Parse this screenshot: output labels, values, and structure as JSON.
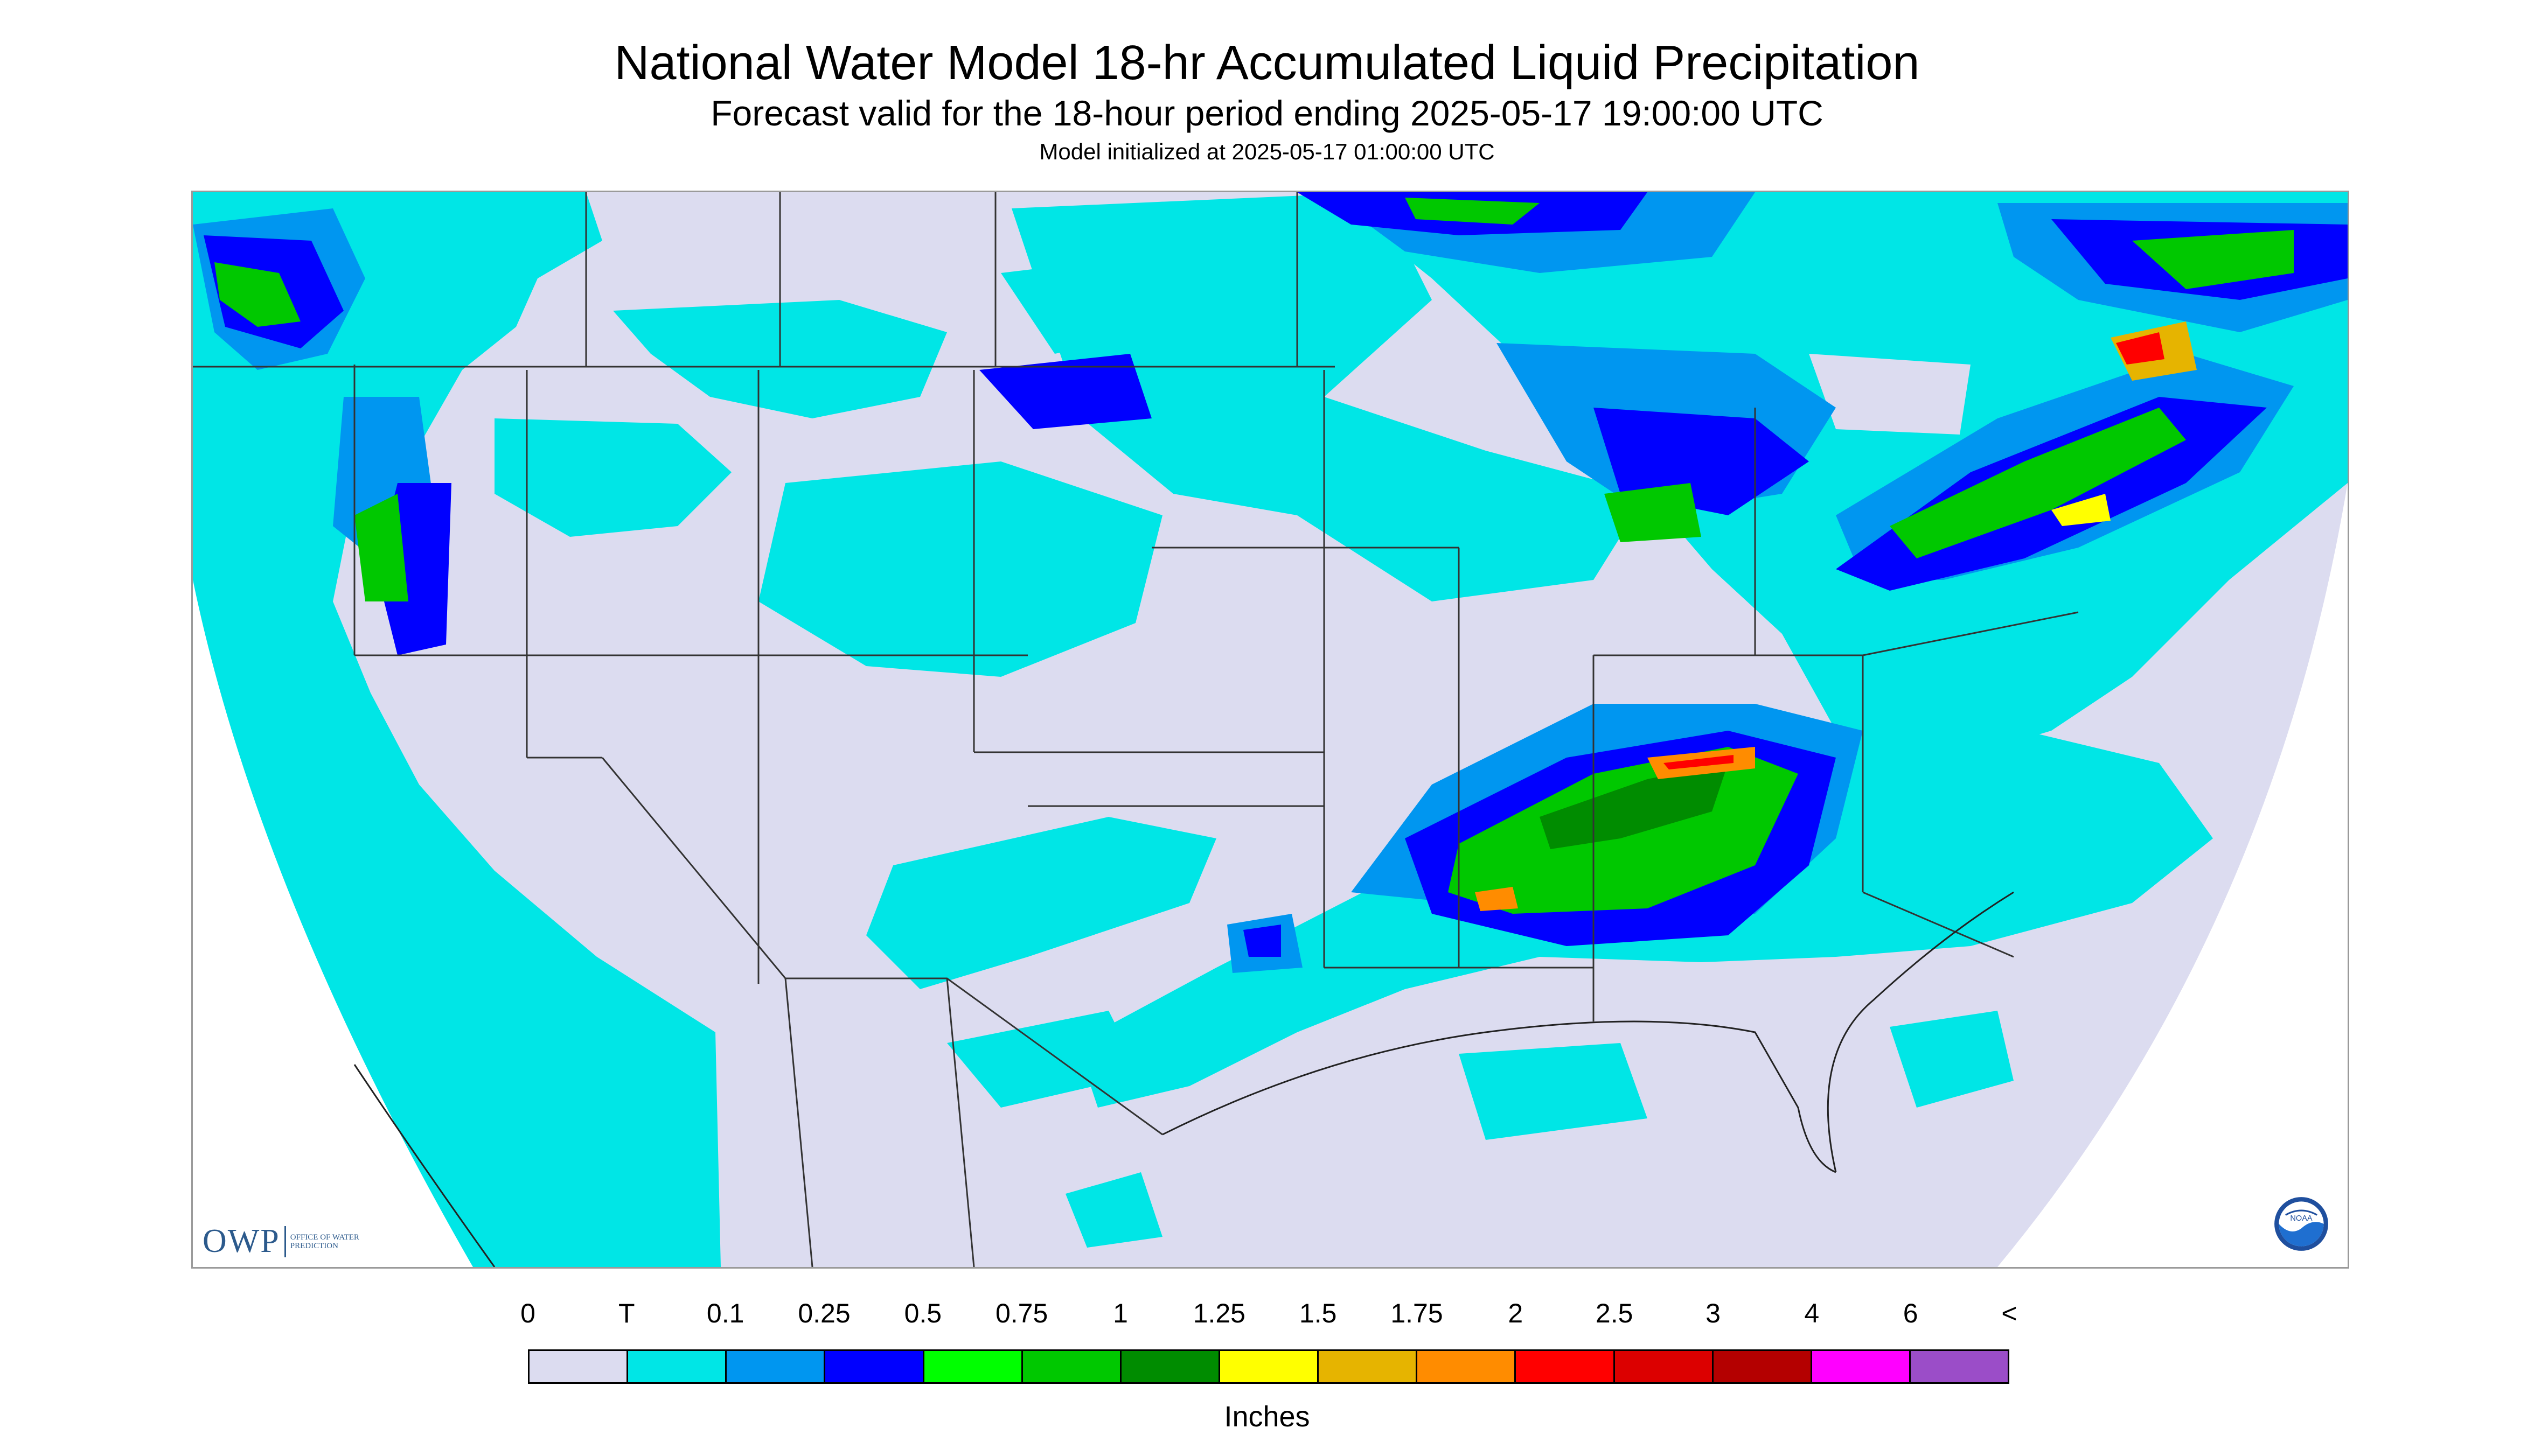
{
  "header": {
    "title": "National Water Model 18-hr Accumulated Liquid Precipitation",
    "subtitle": "Forecast valid for the 18-hour period ending 2025-05-17 19:00:00 UTC",
    "init_line": "Model initialized at 2025-05-17 01:00:00 UTC"
  },
  "map": {
    "background_color": "#dcdcf0",
    "logo_left": {
      "letters": "OWP",
      "text": "OFFICE OF WATER PREDICTION",
      "color": "#2c5a8c"
    },
    "logo_right": {
      "text": "NOAA",
      "icon": "noaa-icon"
    }
  },
  "legend": {
    "labels": [
      "0",
      "T",
      "0.1",
      "0.25",
      "0.5",
      "0.75",
      "1",
      "1.25",
      "1.5",
      "1.75",
      "2",
      "2.5",
      "3",
      "4",
      "6",
      "<"
    ],
    "colors": [
      "#dcdcf0",
      "#00e6e6",
      "#0096f0",
      "#0000ff",
      "#00ff00",
      "#00c800",
      "#008c00",
      "#ffff00",
      "#e6b400",
      "#ff8c00",
      "#ff0000",
      "#dc0000",
      "#b40000",
      "#ff00ff",
      "#9b4dc8"
    ],
    "units": "Inches"
  }
}
